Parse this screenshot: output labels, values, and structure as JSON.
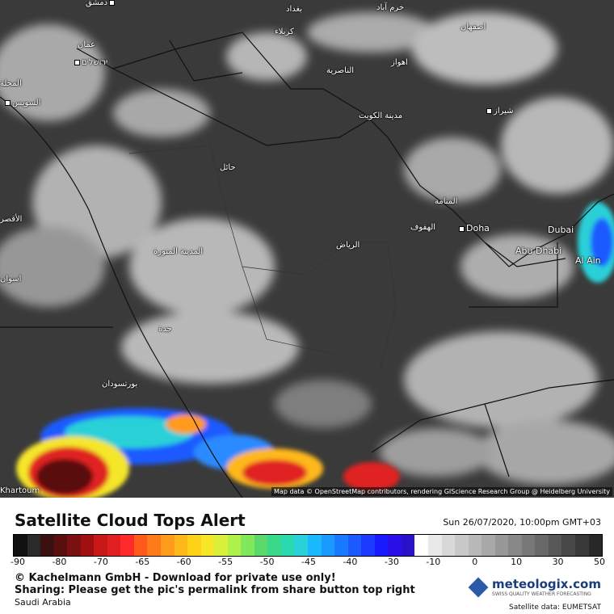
{
  "map": {
    "attribution": "Map data © OpenStreetMap contributors, rendering GIScience Research Group @ Heidelberg University",
    "cities": [
      {
        "name": "دمشق"
      },
      {
        "name": "بغداد"
      },
      {
        "name": "خرم آباد"
      },
      {
        "name": "کربلاء"
      },
      {
        "name": "اصفهان"
      },
      {
        "name": "عمان"
      },
      {
        "name": "ירושלים"
      },
      {
        "name": "اهواز"
      },
      {
        "name": "الناصرية"
      },
      {
        "name": "السويس"
      },
      {
        "name": "مدينة الكويت"
      },
      {
        "name": "شیراز"
      },
      {
        "name": "حائل"
      },
      {
        "name": "المنامة"
      },
      {
        "name": "الهفوف"
      },
      {
        "name": "Doha"
      },
      {
        "name": "Dubai"
      },
      {
        "name": "الرياض"
      },
      {
        "name": "المدينة المنورة"
      },
      {
        "name": "Abu Dhabi"
      },
      {
        "name": "Al Ain"
      },
      {
        "name": "جدة"
      },
      {
        "name": "بورتسودان"
      },
      {
        "name": "المحلة"
      },
      {
        "name": "الأقصر"
      },
      {
        "name": "اسوان"
      },
      {
        "name": "Khartoum"
      }
    ]
  },
  "panel": {
    "title": "Satellite Cloud Tops Alert",
    "datetime": "Sun 26/07/2020, 10:00pm GMT+03",
    "scale_labels": [
      "-90",
      "-80",
      "-70",
      "-65",
      "-60",
      "-55",
      "-50",
      "-45",
      "-40",
      "-30",
      "-10",
      "0",
      "10",
      "30",
      "50"
    ],
    "copyright": "© Kachelmann GmbH - Download for private use only!",
    "sharing": "Sharing: Please get the pic's permalink from share button top right",
    "region": "Saudi Arabia",
    "logo_name": "meteologix.com",
    "logo_tagline": "SWISS QUALITY WEATHER FORECASTING",
    "satellite_source": "Satellite data: EUMETSAT"
  },
  "colors": {
    "scale": [
      "#111111",
      "#2a2a2a",
      "#3a1010",
      "#5a0f0f",
      "#7a1010",
      "#a01010",
      "#c81818",
      "#e02020",
      "#ff2a2a",
      "#ff5a1a",
      "#ff7a1a",
      "#ff9a1a",
      "#ffb81a",
      "#ffd21a",
      "#f5e62a",
      "#d8f03a",
      "#b0f04a",
      "#80e85a",
      "#5ad86a",
      "#3ad88a",
      "#2ad8b0",
      "#2ad0d8",
      "#1ab8ff",
      "#1a9aff",
      "#1a7aff",
      "#1a5aff",
      "#1a3aff",
      "#1a1aff",
      "#2a10e8",
      "#2a10c8",
      "#ffffff",
      "#e8e8e8",
      "#d8d8d8",
      "#c8c8c8",
      "#b8b8b8",
      "#a8a8a8",
      "#989898",
      "#888888",
      "#787878",
      "#686868",
      "#585858",
      "#484848",
      "#383838",
      "#282828"
    ],
    "brand": "#1b3d7a"
  }
}
